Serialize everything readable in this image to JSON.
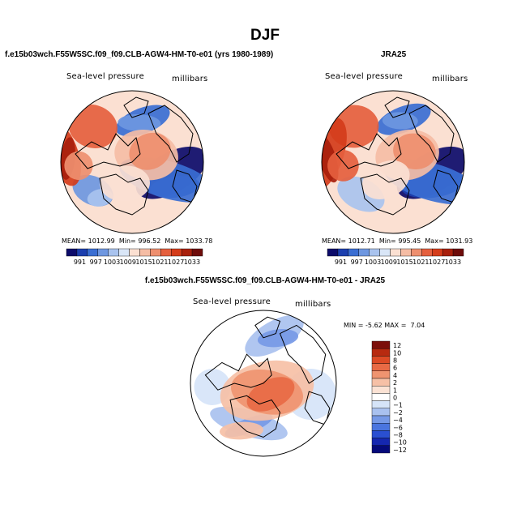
{
  "title": "DJF",
  "colors": {
    "abs_scale": [
      "#0c0b6a",
      "#1c3fae",
      "#3a6ed2",
      "#6e97e0",
      "#a9c3ee",
      "#d9e6f7",
      "#fbe0d2",
      "#f5bda5",
      "#ee8f6f",
      "#e5603e",
      "#d43c1a",
      "#a8200c",
      "#6e0c0a"
    ],
    "diff_scale": [
      "#050a7a",
      "#1527b0",
      "#2a4fd1",
      "#4a75df",
      "#7699e6",
      "#a9c1ef",
      "#d6e4f8",
      "#ffffff",
      "#fbe2d4",
      "#f6c0a6",
      "#ef9470",
      "#e86a45",
      "#dc4a25",
      "#b72a10",
      "#7b0f0a"
    ],
    "land": "#000000"
  },
  "chart_data": [
    {
      "type": "heatmap",
      "subtype": "polar stereographic contour map",
      "panel_title": "f.e15b03wch.F55W5SC.f09_f09.CLB-AGW4-HM-T0-e01 (yrs 1980-1989)",
      "left_label": "Sea-level pressure",
      "right_label": "millibars",
      "stats": {
        "mean_label": "MEAN=",
        "mean": "1012.99",
        "min_label": "Min=",
        "min": "996.52",
        "max_label": "Max=",
        "max": "1033.78"
      },
      "colorbar_ticks": [
        "991",
        "997",
        "1003",
        "1009",
        "1015",
        "1021",
        "1027",
        "1033"
      ],
      "colorbar_levels": [
        991,
        994,
        997,
        1000,
        1003,
        1006,
        1009,
        1012,
        1015,
        1018,
        1021,
        1024,
        1027,
        1030,
        1033
      ],
      "value_range": [
        996.52,
        1033.78
      ]
    },
    {
      "type": "heatmap",
      "subtype": "polar stereographic contour map",
      "panel_title": "JRA25",
      "left_label": "Sea-level pressure",
      "right_label": "millibars",
      "stats": {
        "mean_label": "MEAN=",
        "mean": "1012.71",
        "min_label": "Min=",
        "min": "995.45",
        "max_label": "Max=",
        "max": "1031.93"
      },
      "colorbar_ticks": [
        "991",
        "997",
        "1003",
        "1009",
        "1015",
        "1021",
        "1027",
        "1033"
      ],
      "colorbar_levels": [
        991,
        994,
        997,
        1000,
        1003,
        1006,
        1009,
        1012,
        1015,
        1018,
        1021,
        1024,
        1027,
        1030,
        1033
      ],
      "value_range": [
        995.45,
        1031.93
      ]
    },
    {
      "type": "heatmap",
      "subtype": "polar stereographic contour map (difference)",
      "panel_title": "f.e15b03wch.F55W5SC.f09_f09.CLB-AGW4-HM-T0-e01 - JRA25",
      "left_label": "Sea-level pressure",
      "right_label": "millibars",
      "stats": {
        "min_label": "MIN =",
        "min": "-5.62",
        "max_label": "MAX =",
        "max": "7.04"
      },
      "colorbar_ticks": [
        "12",
        "10",
        "8",
        "6",
        "4",
        "2",
        "1",
        "0",
        "−1",
        "−2",
        "−4",
        "−6",
        "−8",
        "−10",
        "−12"
      ],
      "colorbar_levels": [
        12,
        10,
        8,
        6,
        4,
        2,
        1,
        0,
        -1,
        -2,
        -4,
        -6,
        -8,
        -10,
        -12
      ],
      "value_range": [
        -5.62,
        7.04
      ]
    }
  ]
}
